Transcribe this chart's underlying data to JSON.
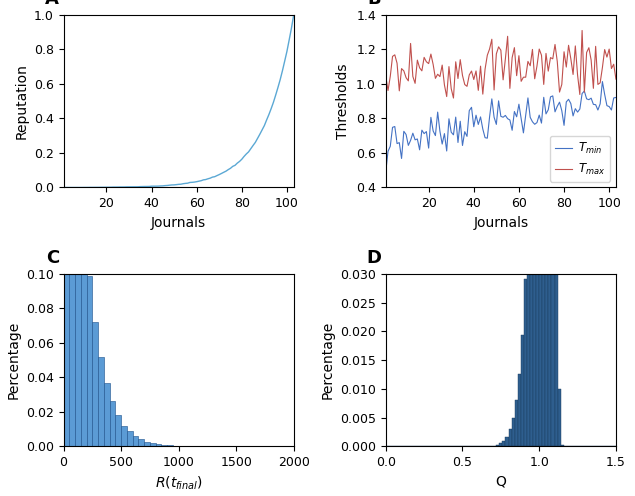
{
  "panel_A": {
    "label": "A",
    "xlabel": "Journals",
    "ylabel": "Reputation",
    "xlim": [
      1,
      103
    ],
    "ylim": [
      0,
      1
    ],
    "xticks": [
      20,
      40,
      60,
      80,
      100
    ],
    "yticks": [
      0,
      0.2,
      0.4,
      0.6,
      0.8,
      1.0
    ],
    "line_color": "#5BA8D4",
    "n_journals": 103
  },
  "panel_B": {
    "label": "B",
    "xlabel": "Journals",
    "ylabel": "Thresholds",
    "xlim": [
      1,
      103
    ],
    "ylim": [
      0.4,
      1.4
    ],
    "xticks": [
      20,
      40,
      60,
      80,
      100
    ],
    "yticks": [
      0.4,
      0.6,
      0.8,
      1.0,
      1.2,
      1.4
    ],
    "color_min": "#4472C4",
    "color_max": "#C0504D",
    "n_journals": 103
  },
  "panel_C": {
    "label": "C",
    "xlabel": "R(t_final)",
    "ylabel": "Percentage",
    "xlim": [
      0,
      2000
    ],
    "ylim": [
      0,
      0.1
    ],
    "xticks": [
      0,
      500,
      1000,
      1500,
      2000
    ],
    "yticks": [
      0,
      0.02,
      0.04,
      0.06,
      0.08,
      0.1
    ],
    "bar_color": "#5B9BD5",
    "bar_edge_color": "#1A4F8A",
    "n_bins": 40,
    "dist_shape": 1.5,
    "dist_scale": 120
  },
  "panel_D": {
    "label": "D",
    "xlabel": "Q",
    "ylabel": "Percentage",
    "xlim": [
      0,
      1.5
    ],
    "ylim": [
      0,
      0.03
    ],
    "xticks": [
      0,
      0.5,
      1.0,
      1.5
    ],
    "yticks": [
      0,
      0.005,
      0.01,
      0.015,
      0.02,
      0.025,
      0.03
    ],
    "bar_color": "#2E5E8E",
    "bar_edge_color": "#1A3A5C",
    "n_bins": 75,
    "dist_alpha": 30,
    "dist_beta": 4
  },
  "background_color": "#FFFFFF",
  "label_fontsize": 13,
  "tick_fontsize": 9,
  "axis_label_fontsize": 10
}
